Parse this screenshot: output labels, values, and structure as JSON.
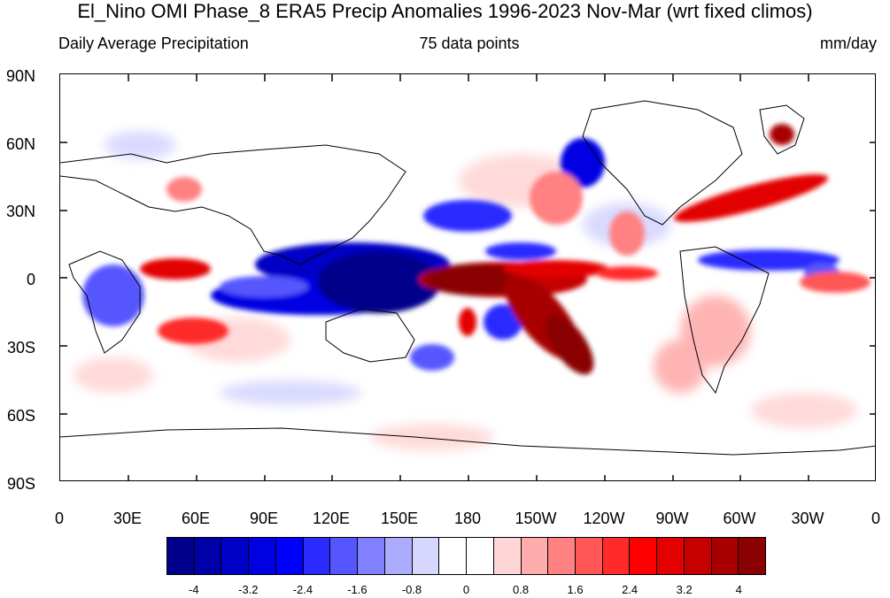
{
  "title": "El_Nino OMI Phase_8 ERA5 Precip Anomalies 1996-2023 Nov-Mar (wrt fixed climos)",
  "subtitle_left": "Daily Average Precipitation",
  "subtitle_center": "75 data points",
  "subtitle_right": "mm/day",
  "lat_ticks": [
    "90N",
    "60N",
    "30N",
    "0",
    "30S",
    "60S",
    "90S"
  ],
  "lon_ticks": [
    "0",
    "30E",
    "60E",
    "90E",
    "120E",
    "150E",
    "180",
    "150W",
    "120W",
    "90W",
    "60W",
    "30W",
    "0"
  ],
  "colorbar": {
    "colors": [
      "#00008b",
      "#0000a8",
      "#0000c6",
      "#0000e3",
      "#0000ff",
      "#2b2bff",
      "#5656ff",
      "#8181ff",
      "#acacff",
      "#d6d6ff",
      "#ffffff",
      "#ffffff",
      "#ffd6d6",
      "#ffacac",
      "#ff8181",
      "#ff5656",
      "#ff2b2b",
      "#ff0000",
      "#e30000",
      "#c60000",
      "#a80000",
      "#8b0000"
    ],
    "labels": [
      "-4",
      "-3.2",
      "-2.4",
      "-1.6",
      "-0.8",
      "0",
      "0.8",
      "1.6",
      "2.4",
      "3.2",
      "4"
    ]
  }
}
